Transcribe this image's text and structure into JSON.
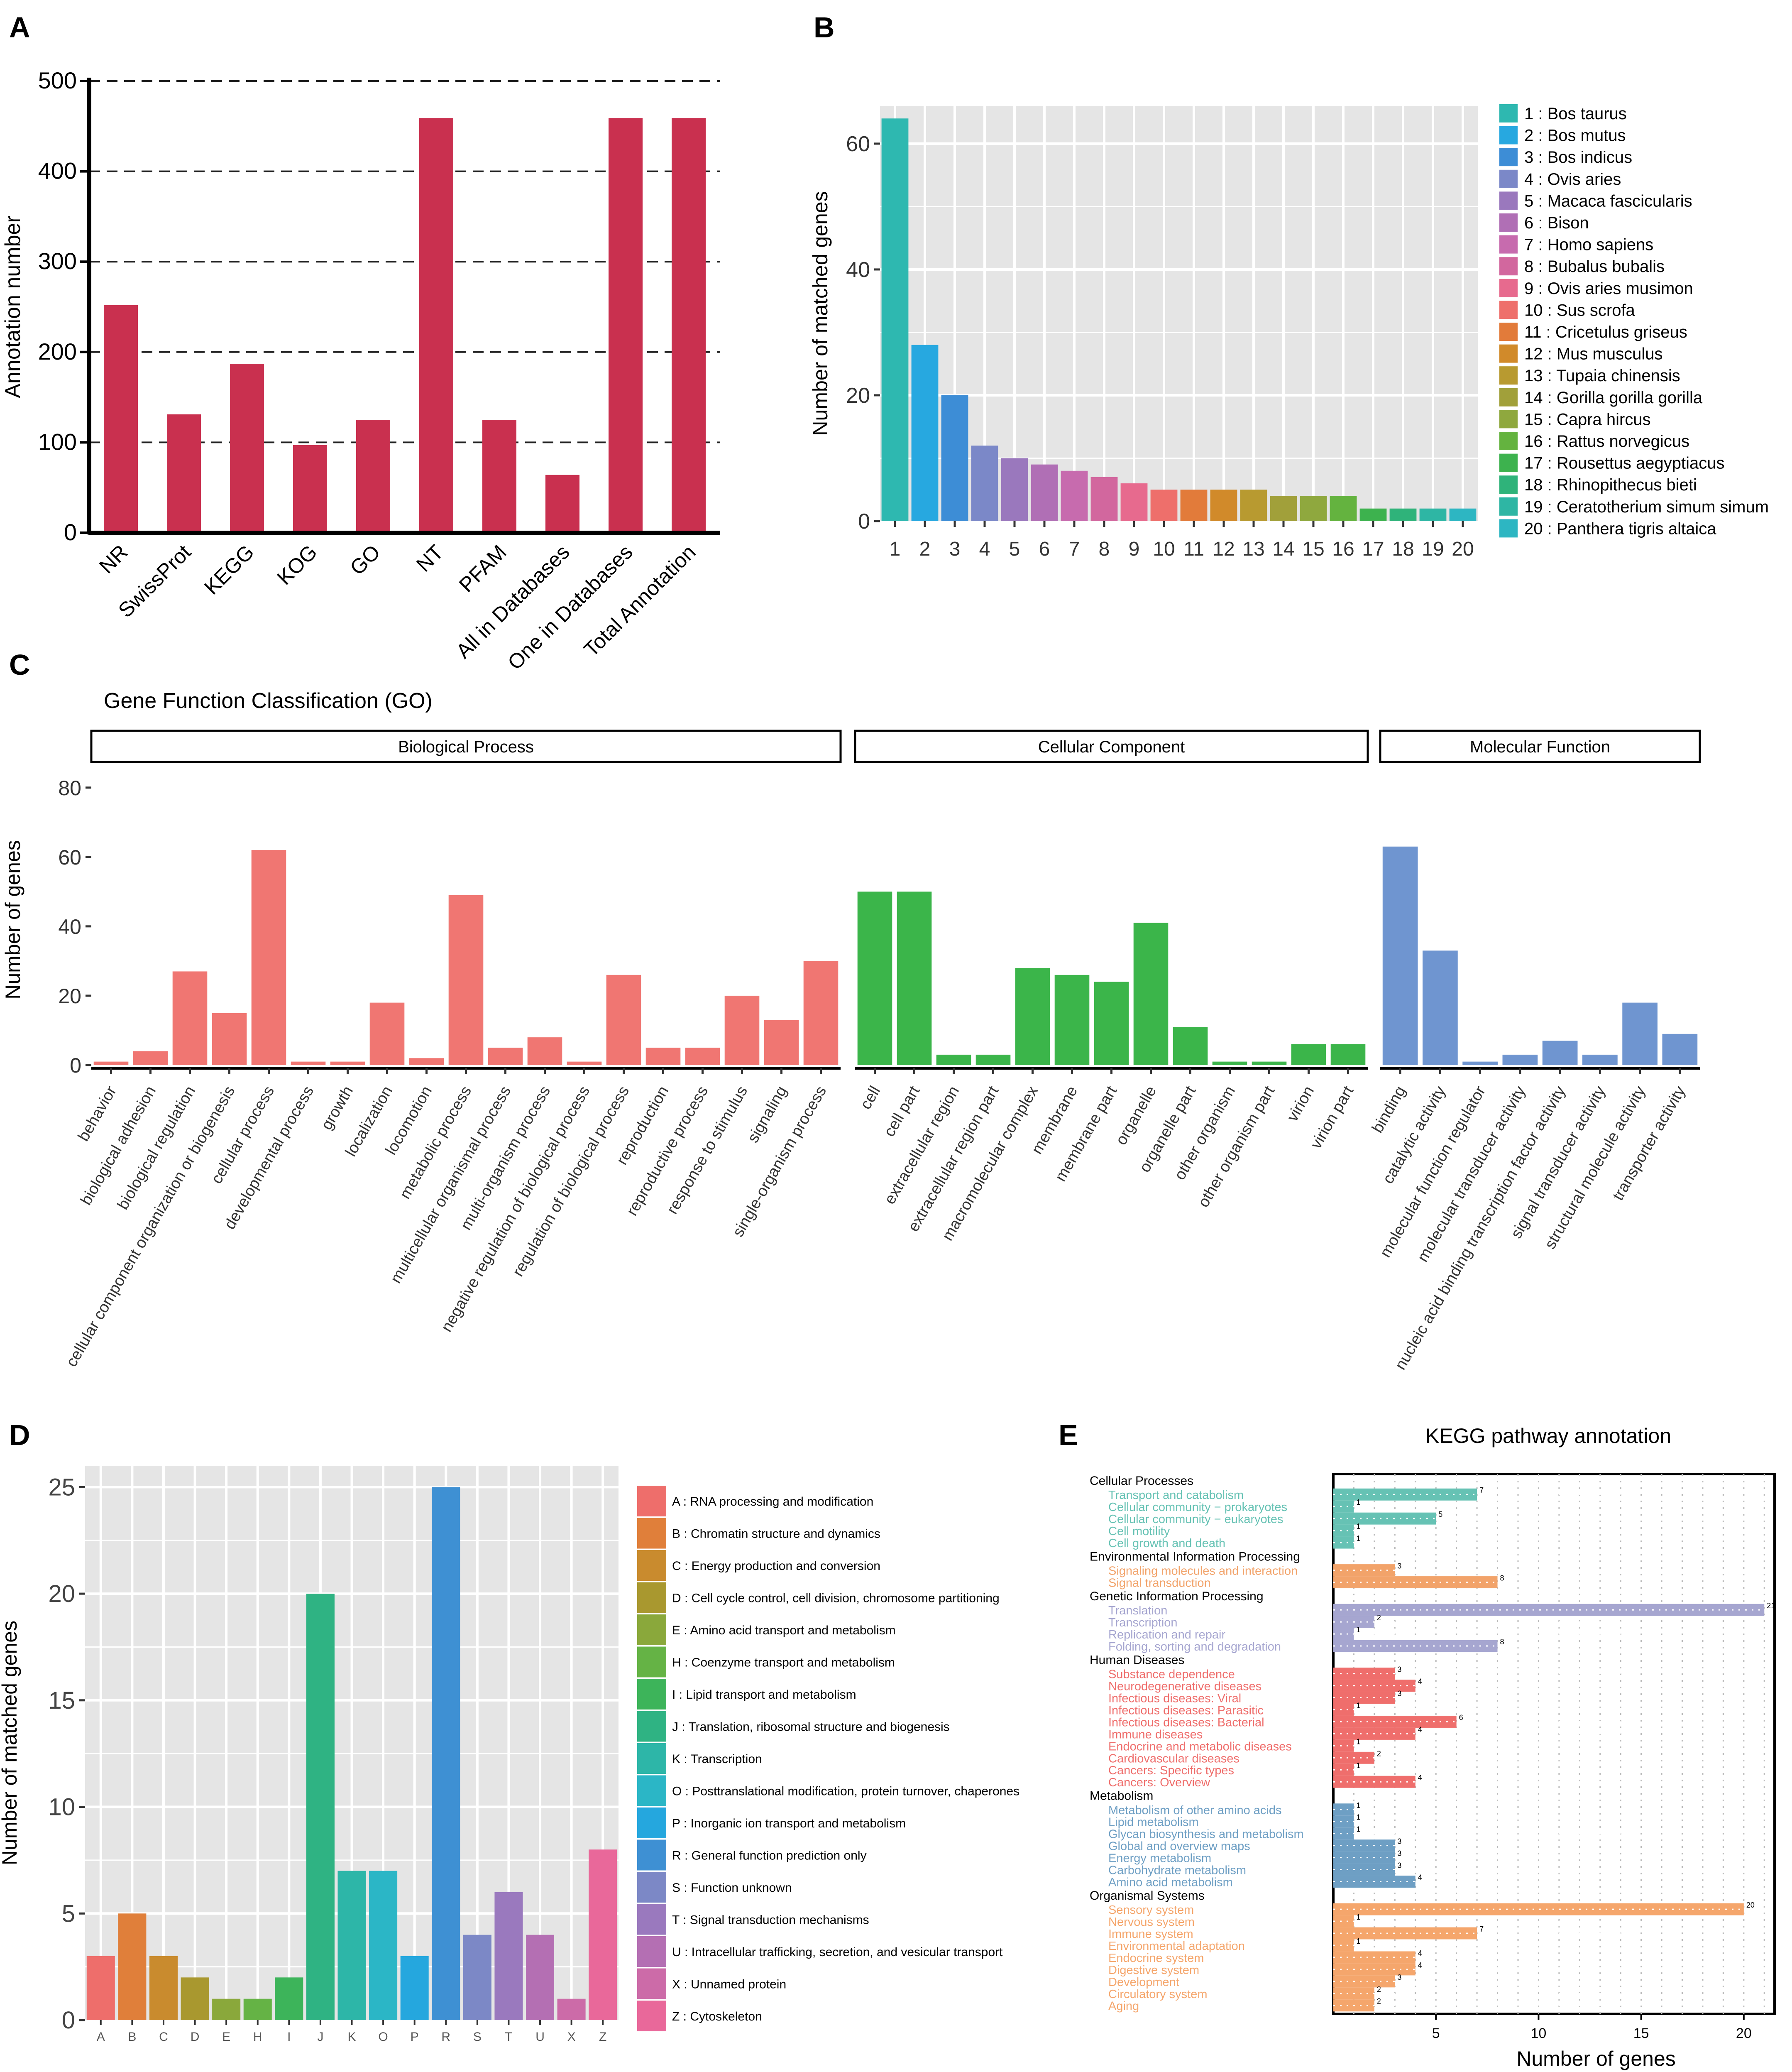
{
  "panel_letters": [
    "A",
    "B",
    "C",
    "D",
    "E"
  ],
  "colors": {
    "panel_a_bar": "#C9304F",
    "grid_bg": "#E5E5E5",
    "go": {
      "bp": "#F07672",
      "cc": "#3BB54A",
      "mf": "#6F95D0"
    },
    "kegg": {
      "Cellular Processes": "#66C2B4",
      "Environmental Information Processing": "#F2A36A",
      "Genetic Information Processing": "#A6A6D0",
      "Human Diseases": "#EF6E6C",
      "Metabolism": "#6E9FC4",
      "Organismal Systems": "#F5A66C"
    }
  },
  "chart_data": [
    {
      "panel": "A",
      "type": "bar",
      "categories": [
        "NR",
        "SwissProt",
        "KEGG",
        "KOG",
        "GO",
        "NT",
        "PFAM",
        "All in Databases",
        "One in Databases",
        "Total Annotation"
      ],
      "values": [
        252,
        131,
        187,
        97,
        125,
        459,
        125,
        64,
        459,
        459
      ],
      "xlabel": "",
      "ylabel": "Annotation number",
      "ylim": [
        0,
        500
      ],
      "yticks": [
        0,
        100,
        200,
        300,
        400,
        500
      ],
      "gridlines": "dashed"
    },
    {
      "panel": "B",
      "type": "bar",
      "categories": [
        "1",
        "2",
        "3",
        "4",
        "5",
        "6",
        "7",
        "8",
        "9",
        "10",
        "11",
        "12",
        "13",
        "14",
        "15",
        "16",
        "17",
        "18",
        "19",
        "20"
      ],
      "values": [
        64,
        28,
        20,
        12,
        10,
        9,
        8,
        7,
        6,
        5,
        5,
        5,
        5,
        4,
        4,
        4,
        2,
        2,
        2,
        2
      ],
      "legend": [
        "1 : Bos taurus",
        "2 : Bos mutus",
        "3 : Bos indicus",
        "4 : Ovis aries",
        "5 : Macaca fascicularis",
        "6 : Bison",
        "7 : Homo sapiens",
        "8 : Bubalus bubalis",
        "9 : Ovis aries musimon",
        "10 : Sus scrofa",
        "11 : Cricetulus griseus",
        "12 : Mus musculus",
        "13 : Tupaia chinensis",
        "14 : Gorilla gorilla gorilla",
        "15 : Capra hircus",
        "16 : Rattus norvegicus",
        "17 : Rousettus aegyptiacus",
        "18 : Rhinopithecus bieti",
        "19 : Ceratotherium simum simum",
        "20 : Panthera tigris altaica"
      ],
      "colors": [
        "#2EB8B0",
        "#27A8E0",
        "#3D8DD6",
        "#7B88C8",
        "#9A78BD",
        "#B06FB5",
        "#C76BAE",
        "#D2679E",
        "#E76A8E",
        "#EE6F6B",
        "#E27B3A",
        "#D18A2A",
        "#B89A30",
        "#A1A03A",
        "#8FA83E",
        "#64B33F",
        "#3DB24E",
        "#2FB37A",
        "#2EB6A4",
        "#2DB6C2"
      ],
      "xlabel": "",
      "ylabel": "Number of matched genes",
      "ylim": [
        0,
        66
      ],
      "yticks": [
        0,
        20,
        40,
        60
      ],
      "legend_position": "right"
    },
    {
      "panel": "C",
      "type": "bar",
      "title": "Gene Function Classification (GO)",
      "ylabel": "Number of genes",
      "ylim": [
        0,
        85
      ],
      "yticks": [
        0,
        20,
        40,
        60,
        80
      ],
      "facets": [
        {
          "name": "Biological Process",
          "categories": [
            "behavior",
            "biological adhesion",
            "biological regulation",
            "cellular component organization or biogenesis",
            "cellular process",
            "developmental process",
            "growth",
            "localization",
            "locomotion",
            "metabolic process",
            "multicellular organismal process",
            "multi-organism process",
            "negative regulation of biological process",
            "regulation of biological process",
            "reproduction",
            "reproductive process",
            "response to stimulus",
            "signaling",
            "single-organism process"
          ],
          "values": [
            1,
            4,
            27,
            15,
            62,
            1,
            1,
            18,
            2,
            49,
            5,
            8,
            1,
            26,
            5,
            5,
            20,
            13,
            30
          ]
        },
        {
          "name": "Cellular Component",
          "categories": [
            "cell",
            "cell part",
            "extracellular region",
            "extracellular region part",
            "macromolecular complex",
            "membrane",
            "membrane part",
            "organelle",
            "organelle part",
            "other organism",
            "other organism part",
            "virion",
            "virion part"
          ],
          "values": [
            50,
            50,
            3,
            3,
            28,
            26,
            24,
            41,
            11,
            1,
            1,
            6,
            6
          ]
        },
        {
          "name": "Molecular Function",
          "categories": [
            "binding",
            "catalytic activity",
            "molecular function regulator",
            "molecular transducer activity",
            "nucleic acid binding transcription factor activity",
            "signal transducer activity",
            "structural molecule activity",
            "transporter activity"
          ],
          "values": [
            63,
            33,
            1,
            3,
            7,
            3,
            18,
            9
          ]
        }
      ]
    },
    {
      "panel": "D",
      "type": "bar",
      "categories": [
        "A",
        "B",
        "C",
        "D",
        "E",
        "H",
        "I",
        "J",
        "K",
        "O",
        "P",
        "R",
        "S",
        "T",
        "U",
        "X",
        "Z"
      ],
      "values": [
        3,
        5,
        3,
        2,
        1,
        1,
        2,
        20,
        7,
        7,
        3,
        25,
        4,
        6,
        4,
        1,
        8
      ],
      "legend": [
        "A : RNA processing and modification",
        "B : Chromatin structure and dynamics",
        "C : Energy production and conversion",
        "D : Cell cycle control, cell division, chromosome partitioning",
        "E : Amino acid transport and metabolism",
        "H : Coenzyme transport and metabolism",
        "I : Lipid transport and metabolism",
        "J : Translation, ribosomal structure and biogenesis",
        "K : Transcription",
        "O : Posttranslational modification, protein turnover, chaperones",
        "P : Inorganic ion transport and metabolism",
        "R : General function prediction only",
        "S : Function unknown",
        "T : Signal transduction mechanisms",
        "U : Intracellular trafficking, secretion, and vesicular transport",
        "X : Unnamed protein",
        "Z : Cytoskeleton"
      ],
      "colors": [
        "#EE6E6B",
        "#E07F3A",
        "#C98B2E",
        "#A9982F",
        "#8AA83B",
        "#65B345",
        "#3DB45A",
        "#2FB383",
        "#2DB6A8",
        "#2BB6C6",
        "#25A7DE",
        "#3E90D3",
        "#7C88C6",
        "#9A79BE",
        "#B46FB3",
        "#CC6BA8",
        "#E9689A"
      ],
      "xlabel": "",
      "ylabel": "Number of matched genes",
      "ylim": [
        0,
        26
      ],
      "yticks": [
        0,
        5,
        10,
        15,
        20,
        25
      ],
      "legend_position": "right"
    },
    {
      "panel": "E",
      "type": "bar",
      "orientation": "horizontal",
      "title": "KEGG pathway annotation",
      "xlabel": "Number of genes",
      "xlim": [
        0,
        21.5
      ],
      "xticks": [
        5,
        10,
        15,
        20
      ],
      "groups": [
        {
          "name": "Cellular Processes",
          "items": [
            {
              "label": "Transport and catabolism",
              "value": 7
            },
            {
              "label": "Cellular community − prokaryotes",
              "value": 1
            },
            {
              "label": "Cellular community − eukaryotes",
              "value": 5
            },
            {
              "label": "Cell motility",
              "value": 1
            },
            {
              "label": "Cell growth and death",
              "value": 1
            }
          ]
        },
        {
          "name": "Environmental Information Processing",
          "items": [
            {
              "label": "Signaling molecules and interaction",
              "value": 3
            },
            {
              "label": "Signal transduction",
              "value": 8
            }
          ]
        },
        {
          "name": "Genetic Information Processing",
          "items": [
            {
              "label": "Translation",
              "value": 21
            },
            {
              "label": "Transcription",
              "value": 2
            },
            {
              "label": "Replication and repair",
              "value": 1
            },
            {
              "label": "Folding, sorting and degradation",
              "value": 8
            }
          ]
        },
        {
          "name": "Human Diseases",
          "items": [
            {
              "label": "Substance dependence",
              "value": 3
            },
            {
              "label": "Neurodegenerative diseases",
              "value": 4
            },
            {
              "label": "Infectious diseases: Viral",
              "value": 3
            },
            {
              "label": "Infectious diseases: Parasitic",
              "value": 1
            },
            {
              "label": "Infectious diseases: Bacterial",
              "value": 6
            },
            {
              "label": "Immune diseases",
              "value": 4
            },
            {
              "label": "Endocrine and metabolic diseases",
              "value": 1
            },
            {
              "label": "Cardiovascular diseases",
              "value": 2
            },
            {
              "label": "Cancers: Specific types",
              "value": 1
            },
            {
              "label": "Cancers: Overview",
              "value": 4
            }
          ]
        },
        {
          "name": "Metabolism",
          "items": [
            {
              "label": "Metabolism of other amino acids",
              "value": 1
            },
            {
              "label": "Lipid metabolism",
              "value": 1
            },
            {
              "label": "Glycan biosynthesis and metabolism",
              "value": 1
            },
            {
              "label": "Global and overview maps",
              "value": 3
            },
            {
              "label": "Energy metabolism",
              "value": 3
            },
            {
              "label": "Carbohydrate metabolism",
              "value": 3
            },
            {
              "label": "Amino acid metabolism",
              "value": 4
            }
          ]
        },
        {
          "name": "Organismal Systems",
          "items": [
            {
              "label": "Sensory system",
              "value": 20
            },
            {
              "label": "Nervous system",
              "value": 1
            },
            {
              "label": "Immune system",
              "value": 7
            },
            {
              "label": "Environmental adaptation",
              "value": 1
            },
            {
              "label": "Endocrine system",
              "value": 4
            },
            {
              "label": "Digestive system",
              "value": 4
            },
            {
              "label": "Development",
              "value": 3
            },
            {
              "label": "Circulatory system",
              "value": 2
            },
            {
              "label": "Aging",
              "value": 2
            }
          ]
        }
      ]
    }
  ]
}
